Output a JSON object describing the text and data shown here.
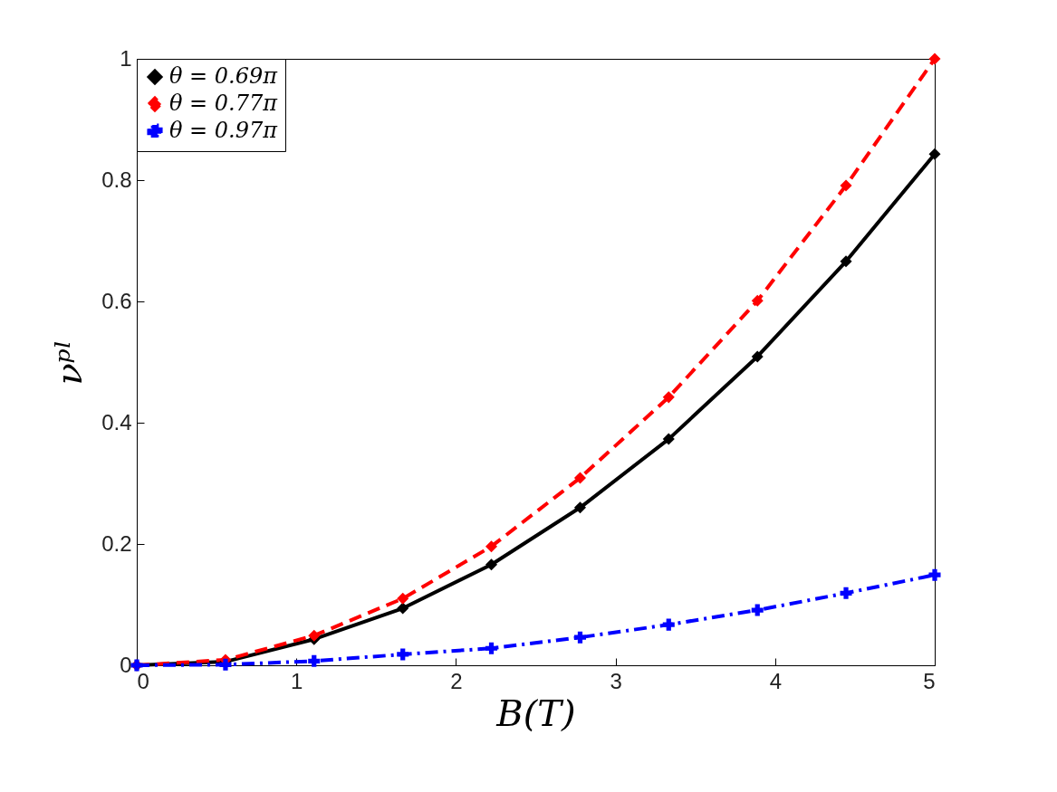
{
  "chart_data": {
    "type": "line",
    "xlabel": "B(T)",
    "ylabel": "νᵖˡ",
    "x": [
      0,
      0.556,
      1.111,
      1.667,
      2.222,
      2.778,
      3.333,
      3.889,
      4.444,
      5
    ],
    "series": [
      {
        "name": "θ = 0.69π",
        "color": "#000000",
        "marker": "diamond",
        "line_style": "solid",
        "values": [
          0,
          0.006,
          0.043,
          0.094,
          0.166,
          0.26,
          0.373,
          0.509,
          0.666,
          0.843
        ]
      },
      {
        "name": "θ = 0.77π",
        "color": "#ff0000",
        "marker": "diamond",
        "line_style": "dashed",
        "values": [
          0,
          0.009,
          0.049,
          0.11,
          0.196,
          0.309,
          0.442,
          0.601,
          0.791,
          1.0
        ]
      },
      {
        "name": "θ = 0.97π",
        "color": "#0000ff",
        "marker": "cross",
        "line_style": "dashdot",
        "values": [
          0,
          0.001,
          0.007,
          0.018,
          0.028,
          0.046,
          0.067,
          0.091,
          0.119,
          0.149
        ]
      }
    ],
    "xlim": [
      0,
      5
    ],
    "xticks": [
      0,
      1,
      2,
      3,
      4,
      5
    ],
    "ylim": [
      0,
      1
    ],
    "yticks": [
      0,
      0.2,
      0.4,
      0.6,
      0.8,
      1
    ],
    "grid": false,
    "legend": "top left"
  }
}
